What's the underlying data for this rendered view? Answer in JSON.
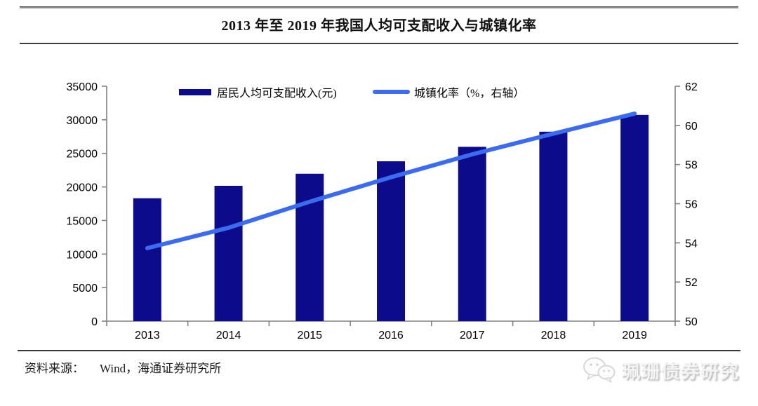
{
  "header": {
    "title": "2013 年至 2019 年我国人均可支配收入与城镇化率"
  },
  "chart_data": {
    "type": "bar+line",
    "title": "2013 年至 2019 年我国人均可支配收入与城镇化率",
    "categories": [
      "2013",
      "2014",
      "2015",
      "2016",
      "2017",
      "2018",
      "2019"
    ],
    "series": [
      {
        "name": "居民人均可支配收入(元)",
        "type": "bar",
        "axis": "left",
        "color": "#0b0b8b",
        "values": [
          18311,
          20167,
          21966,
          23821,
          25974,
          28228,
          30733
        ]
      },
      {
        "name": "城镇化率（%，右轴）",
        "type": "line",
        "axis": "right",
        "color": "#3b6bf0",
        "values": [
          53.73,
          54.77,
          56.1,
          57.35,
          58.52,
          59.58,
          60.6
        ]
      }
    ],
    "y_left": {
      "min": 0,
      "max": 35000,
      "ticks": [
        35000,
        30000,
        25000,
        20000,
        15000,
        10000,
        5000,
        0
      ]
    },
    "y_right": {
      "min": 50,
      "max": 62,
      "ticks": [
        62,
        60,
        58,
        56,
        54,
        52,
        50
      ]
    },
    "legend_position": "top",
    "grid": false,
    "axis_color": "#808080"
  },
  "legend": {
    "bar_label": "居民人均可支配收入(元)",
    "line_label": "城镇化率（%，右轴）"
  },
  "footer": {
    "source_label": "资料来源：",
    "source_value": "Wind，海通证券研究所"
  },
  "watermark": {
    "label": "珮珊债券研究",
    "icon": "wechat-icon"
  }
}
